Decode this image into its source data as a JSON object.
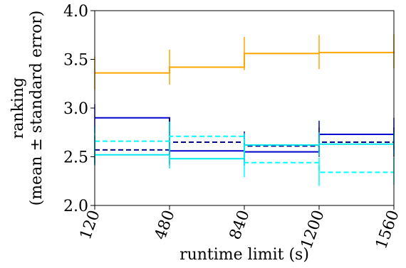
{
  "chart_data": {
    "type": "line",
    "title": "",
    "xlabel": "runtime limit (s)",
    "ylabel_lines": [
      "ranking",
      "(mean ± standard error)"
    ],
    "x": [
      120,
      480,
      840,
      1200,
      1560
    ],
    "x_tick_labels": [
      "120",
      "480",
      "840",
      "1200",
      "1560"
    ],
    "y_tick_labels": [
      "2.0",
      "2.5",
      "3.0",
      "3.5",
      "4.0"
    ],
    "xlim": [
      120,
      1560
    ],
    "ylim": [
      2.0,
      4.0
    ],
    "y_ticks": [
      2.0,
      2.5,
      3.0,
      3.5,
      4.0
    ],
    "grid": false,
    "legend": "none",
    "drawstyle": "steps-post",
    "series": [
      {
        "color": "#FFA500",
        "linestyle": "solid",
        "values": [
          3.36,
          3.42,
          3.56,
          3.57,
          3.58
        ],
        "err_low": [
          3.19,
          3.24,
          3.39,
          3.4,
          3.41
        ],
        "err_high": [
          3.53,
          3.6,
          3.73,
          3.75,
          3.76
        ]
      },
      {
        "color": "#0000CD",
        "linestyle": "solid",
        "values": [
          2.9,
          2.56,
          2.55,
          2.73,
          2.73
        ],
        "err_low": [
          2.74,
          2.42,
          2.41,
          2.58,
          2.57
        ],
        "err_high": [
          3.04,
          2.7,
          2.69,
          2.87,
          2.9
        ]
      },
      {
        "color": "#00008B",
        "linestyle": "dashed",
        "values": [
          2.57,
          2.65,
          2.61,
          2.65,
          2.65
        ],
        "err_low": [
          2.42,
          2.5,
          2.46,
          2.5,
          2.5
        ],
        "err_high": [
          2.72,
          2.8,
          2.76,
          2.8,
          2.8
        ]
      },
      {
        "color": "#00FFFF",
        "linestyle": "dashed",
        "values": [
          2.66,
          2.71,
          2.44,
          2.34,
          2.34
        ],
        "err_low": [
          2.51,
          2.56,
          2.29,
          2.2,
          2.21
        ],
        "err_high": [
          2.81,
          2.86,
          2.59,
          2.49,
          2.49
        ]
      },
      {
        "color": "#00E5EE",
        "linestyle": "solid",
        "values": [
          2.52,
          2.48,
          2.62,
          2.63,
          2.63
        ],
        "err_low": [
          2.41,
          2.38,
          2.5,
          2.51,
          2.51
        ],
        "err_high": [
          2.64,
          2.6,
          2.74,
          2.75,
          2.75
        ]
      }
    ]
  }
}
